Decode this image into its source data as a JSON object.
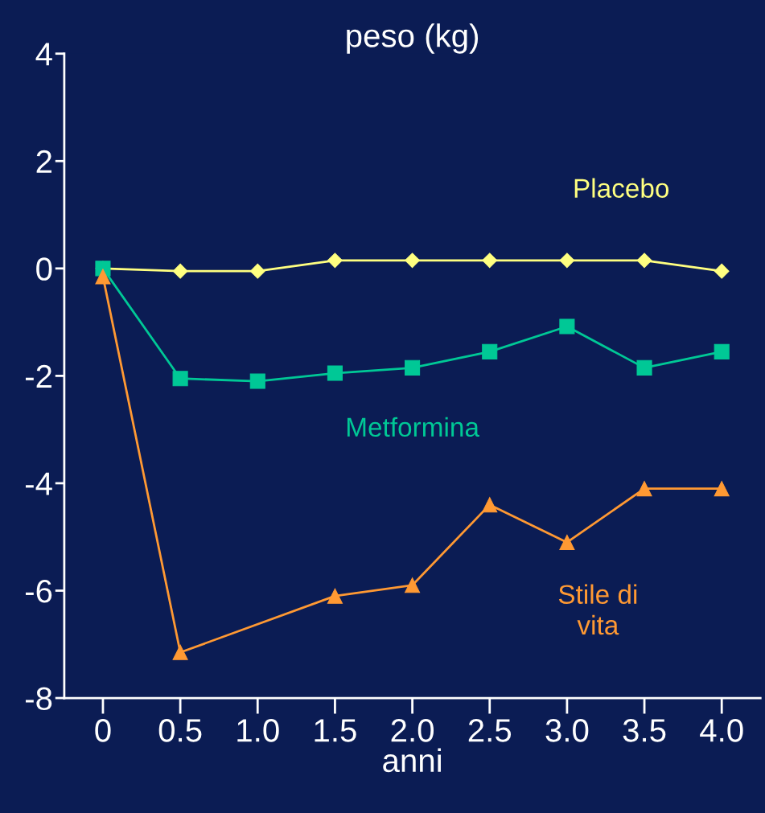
{
  "chart_data": {
    "type": "line",
    "title": "peso (kg)",
    "xlabel": "anni",
    "x": [
      0,
      0.5,
      1.0,
      1.5,
      2.0,
      2.5,
      3.0,
      3.5,
      4.0
    ],
    "series": [
      {
        "name": "Placebo",
        "color": "#ffff80",
        "marker": "diamond",
        "values": [
          0,
          -0.05,
          -0.05,
          0.15,
          0.15,
          0.15,
          0.15,
          0.15,
          -0.05
        ]
      },
      {
        "name": "Metformina",
        "color": "#00c896",
        "marker": "square",
        "values": [
          0,
          -2.05,
          -2.1,
          -1.95,
          -1.85,
          -1.55,
          -1.08,
          -1.85,
          -1.55
        ]
      },
      {
        "name": "Stile di vita",
        "color": "#ff9933",
        "marker": "triangle",
        "x": [
          0,
          0.5,
          1.5,
          2.0,
          2.5,
          3.0,
          3.5,
          4.0
        ],
        "values": [
          -0.15,
          -7.15,
          -6.1,
          -5.9,
          -4.4,
          -5.1,
          -4.1,
          -4.1
        ]
      }
    ],
    "xlim": [
      -0.25,
      4.25
    ],
    "ylim": [
      -8,
      4
    ],
    "xticks": [
      0,
      0.5,
      {
        "value": 1,
        "label": "1.0"
      },
      1.5,
      {
        "value": 2,
        "label": "2.0"
      },
      2.5,
      {
        "value": 3,
        "label": "3.0"
      },
      3.5,
      {
        "value": 4,
        "label": "4.0"
      }
    ],
    "yticks": [
      -8,
      -6,
      -4,
      -2,
      0,
      2,
      4
    ],
    "grid": false,
    "legend": false,
    "line_style": "solid"
  }
}
